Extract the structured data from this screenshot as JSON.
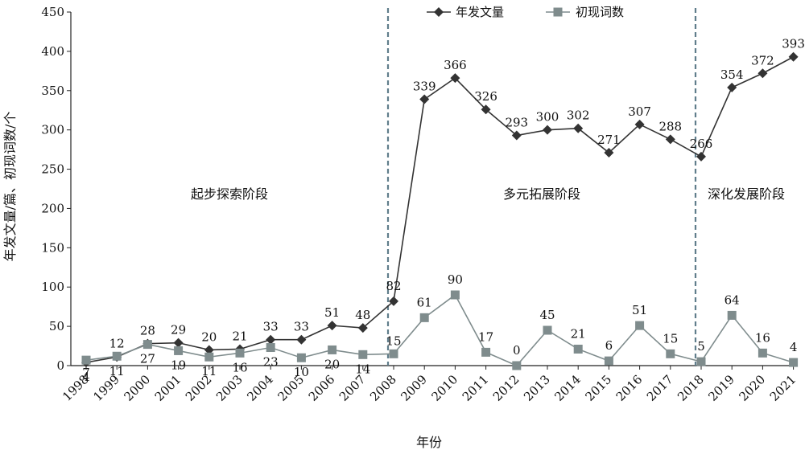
{
  "chart_data": {
    "type": "line",
    "title": "",
    "xlabel": "年份",
    "ylabel": "年发文量/篇、初现词数/个",
    "ylim": [
      0,
      450
    ],
    "yticks": [
      0,
      50,
      100,
      150,
      200,
      250,
      300,
      350,
      400,
      450
    ],
    "grid": false,
    "legend": "top-center",
    "categories": [
      "1998",
      "1999",
      "2000",
      "2001",
      "2002",
      "2003",
      "2004",
      "2005",
      "2006",
      "2007",
      "2008",
      "2009",
      "2010",
      "2011",
      "2012",
      "2013",
      "2014",
      "2015",
      "2016",
      "2017",
      "2018",
      "2019",
      "2020",
      "2021"
    ],
    "series": [
      {
        "name": "年发文量",
        "marker": "diamond",
        "color": "#333333",
        "values": [
          4,
          11,
          28,
          29,
          20,
          21,
          33,
          33,
          51,
          48,
          82,
          339,
          366,
          326,
          293,
          300,
          302,
          271,
          307,
          288,
          266,
          354,
          372,
          393
        ],
        "labels": [
          "4",
          "11",
          "28",
          "29",
          "20",
          "21",
          "33",
          "33",
          "51",
          "48",
          "82",
          "339",
          "366",
          "326",
          "293",
          "300",
          "302",
          "271",
          "307",
          "288",
          "266",
          "354",
          "372",
          "393"
        ]
      },
      {
        "name": "初现词数",
        "marker": "square",
        "color": "#7f8c8d",
        "values": [
          7,
          12,
          27,
          19,
          11,
          16,
          23,
          10,
          20,
          14,
          15,
          61,
          90,
          17,
          0,
          45,
          21,
          6,
          51,
          15,
          5,
          64,
          16,
          4
        ],
        "labels": [
          "7",
          "12",
          "27",
          "19",
          "11",
          "16",
          "23",
          "10",
          "20",
          "14",
          "15",
          "61",
          "90",
          "17",
          "0",
          "45",
          "21",
          "6",
          "51",
          "15",
          "5",
          "64",
          "16",
          "4"
        ]
      }
    ],
    "stage_dividers": [
      "2008",
      "2018"
    ],
    "stages": [
      "起步探索阶段",
      "多元拓展阶段",
      "深化发展阶段"
    ]
  }
}
